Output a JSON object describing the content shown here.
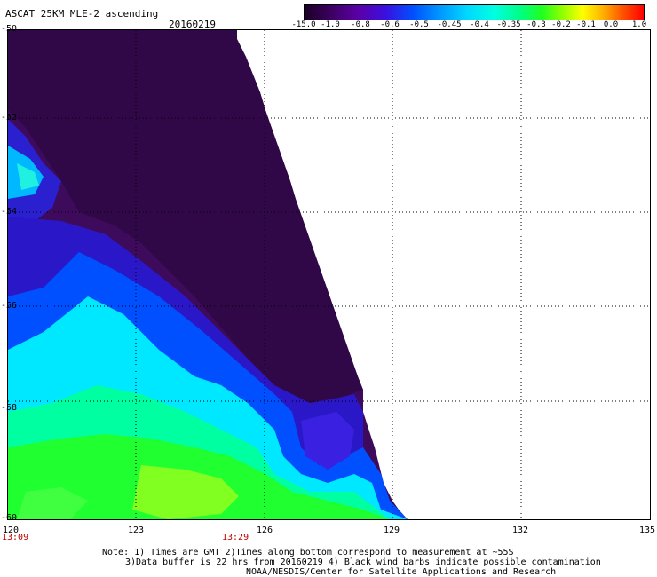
{
  "title": "ASCAT 25KM MLE-2 ascending",
  "date": "20160219",
  "colorbar_ticks": [
    "-15.0",
    "-1.0",
    "-0.8",
    "-0.6",
    "-0.5",
    "-0.45",
    "-0.4",
    "-0.35",
    "-0.3",
    "-0.2",
    "-0.1",
    "0.0",
    "1.0"
  ],
  "lat_labels": [
    "-50",
    "-52",
    "-54",
    "-56",
    "-58",
    "-60"
  ],
  "lon_labels": [
    "120",
    "123",
    "126",
    "129",
    "132",
    "135"
  ],
  "times": [
    "13:09",
    "13:29"
  ],
  "notes": [
    "Note: 1) Times are GMT 2)Times along bottom correspond to measurement at ~55S",
    "3)Data buffer is 22 hrs from 20160219 4) Black wind barbs indicate possible contamination",
    "NOAA/NESDIS/Center for Satellite Applications and Research"
  ],
  "colors": {
    "time_label": "#c00000",
    "low_value": "#4a0a6a",
    "high_value": "#ff0000"
  }
}
